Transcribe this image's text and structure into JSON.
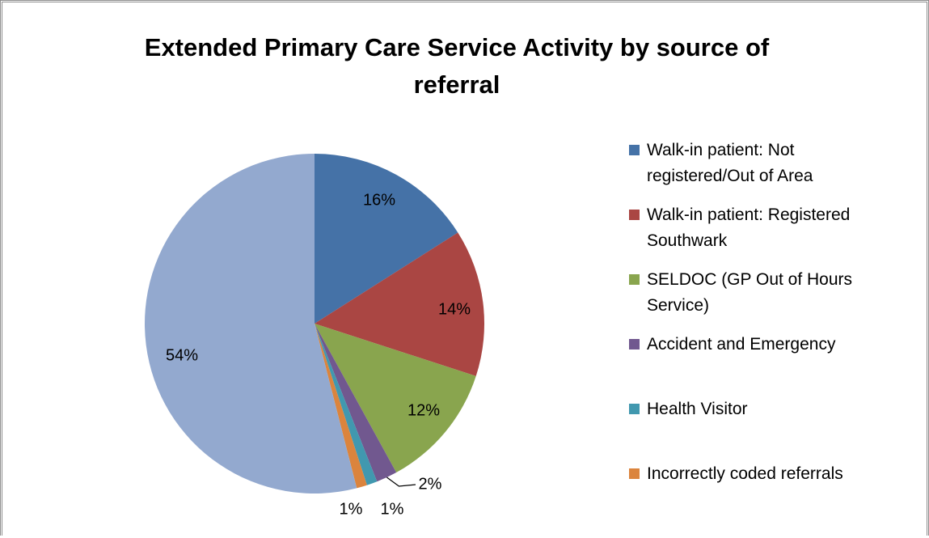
{
  "chart_data": {
    "type": "pie",
    "title": "Extended Primary Care Service Activity by source of referral",
    "categories": [
      "Walk-in patient: Not registered/Out of Area",
      "Walk-in patient: Registered Southwark",
      "SELDOC (GP Out of Hours Service)",
      "Accident and Emergency",
      "Health Visitor",
      "Incorrectly coded referrals",
      null
    ],
    "values": [
      16,
      14,
      12,
      2,
      1,
      1,
      54
    ],
    "value_labels": [
      "16%",
      "14%",
      "12%",
      "2%",
      "1%",
      "1%",
      "54%"
    ],
    "colors": [
      "#4572a7",
      "#aa4643",
      "#89a54e",
      "#71588f",
      "#4198af",
      "#db843d",
      "#93a9cf"
    ],
    "legend": "right"
  }
}
